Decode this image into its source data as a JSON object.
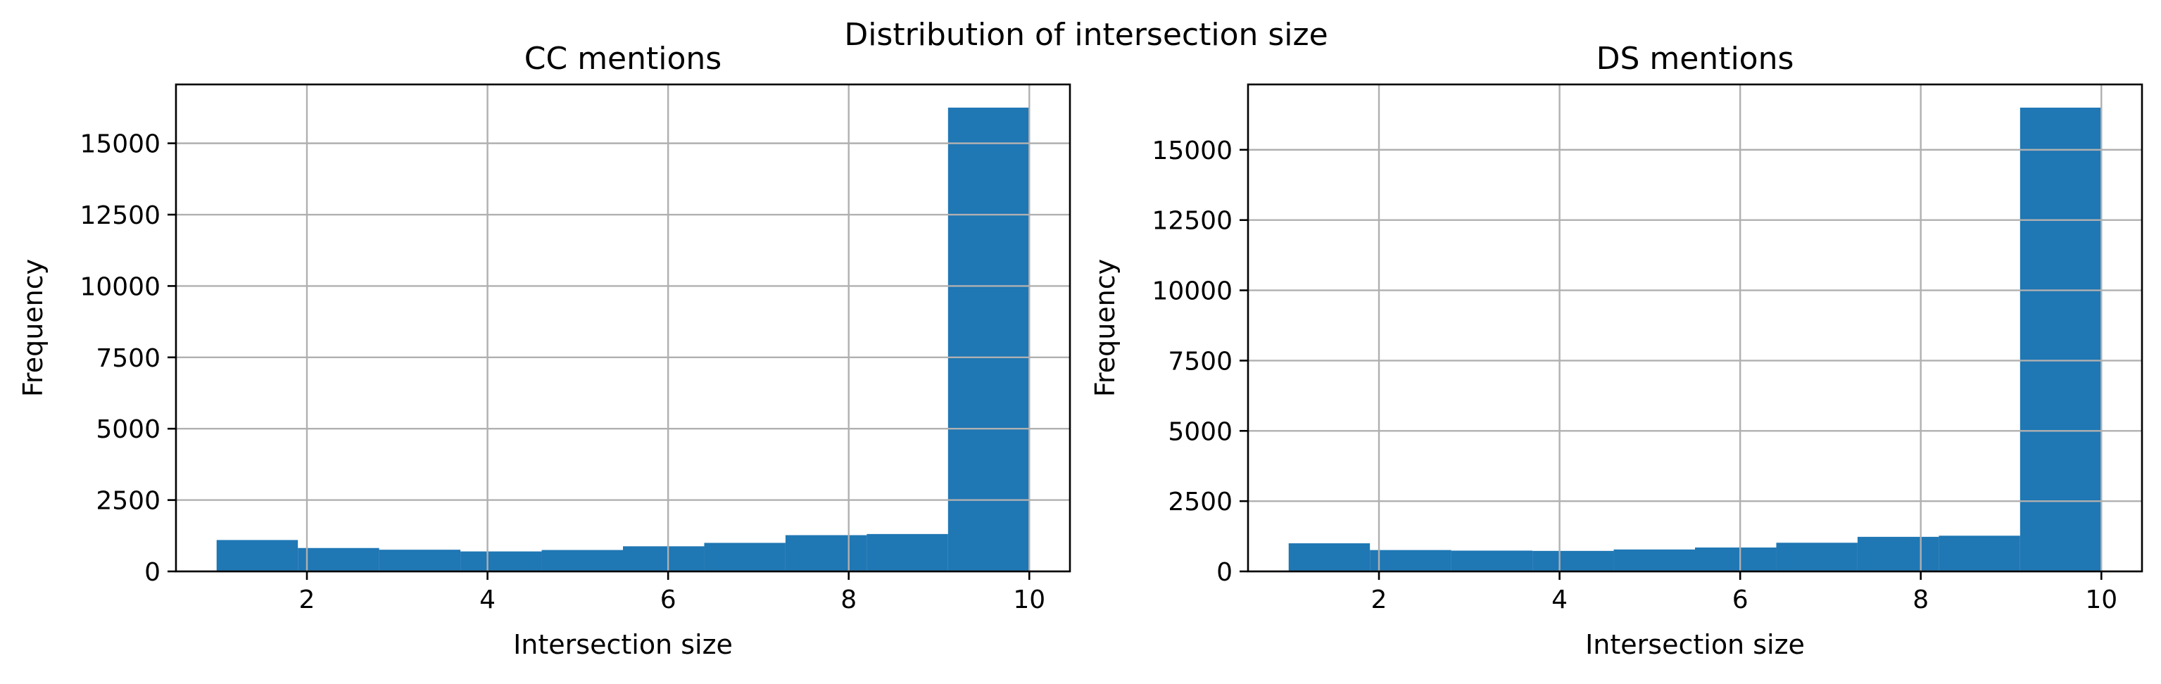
{
  "figure": {
    "suptitle": "Distribution of intersection size"
  },
  "chart_data": [
    {
      "type": "bar",
      "title": "CC mentions",
      "xlabel": "Intersection size",
      "ylabel": "Frequency",
      "bin_edges": [
        1.0,
        1.9,
        2.8,
        3.7,
        4.6,
        5.5,
        6.4,
        7.3,
        8.2,
        9.1,
        10.0
      ],
      "values": [
        1100,
        820,
        760,
        700,
        750,
        880,
        1000,
        1270,
        1310,
        16250
      ],
      "xlim": [
        0.55,
        10.45
      ],
      "ylim": [
        0,
        17062
      ],
      "xticks": [
        2,
        4,
        6,
        8,
        10
      ],
      "yticks": [
        0,
        2500,
        5000,
        7500,
        10000,
        12500,
        15000
      ],
      "grid": true,
      "bar_color": "#1f77b4"
    },
    {
      "type": "bar",
      "title": "DS mentions",
      "xlabel": "Intersection size",
      "ylabel": "Frequency",
      "bin_edges": [
        1.0,
        1.9,
        2.8,
        3.7,
        4.6,
        5.5,
        6.4,
        7.3,
        8.2,
        9.1,
        10.0
      ],
      "values": [
        1000,
        760,
        740,
        730,
        780,
        850,
        1020,
        1230,
        1270,
        16500
      ],
      "xlim": [
        0.55,
        10.45
      ],
      "ylim": [
        0,
        17325
      ],
      "xticks": [
        2,
        4,
        6,
        8,
        10
      ],
      "yticks": [
        0,
        2500,
        5000,
        7500,
        10000,
        12500,
        15000
      ],
      "grid": true,
      "bar_color": "#1f77b4"
    }
  ]
}
